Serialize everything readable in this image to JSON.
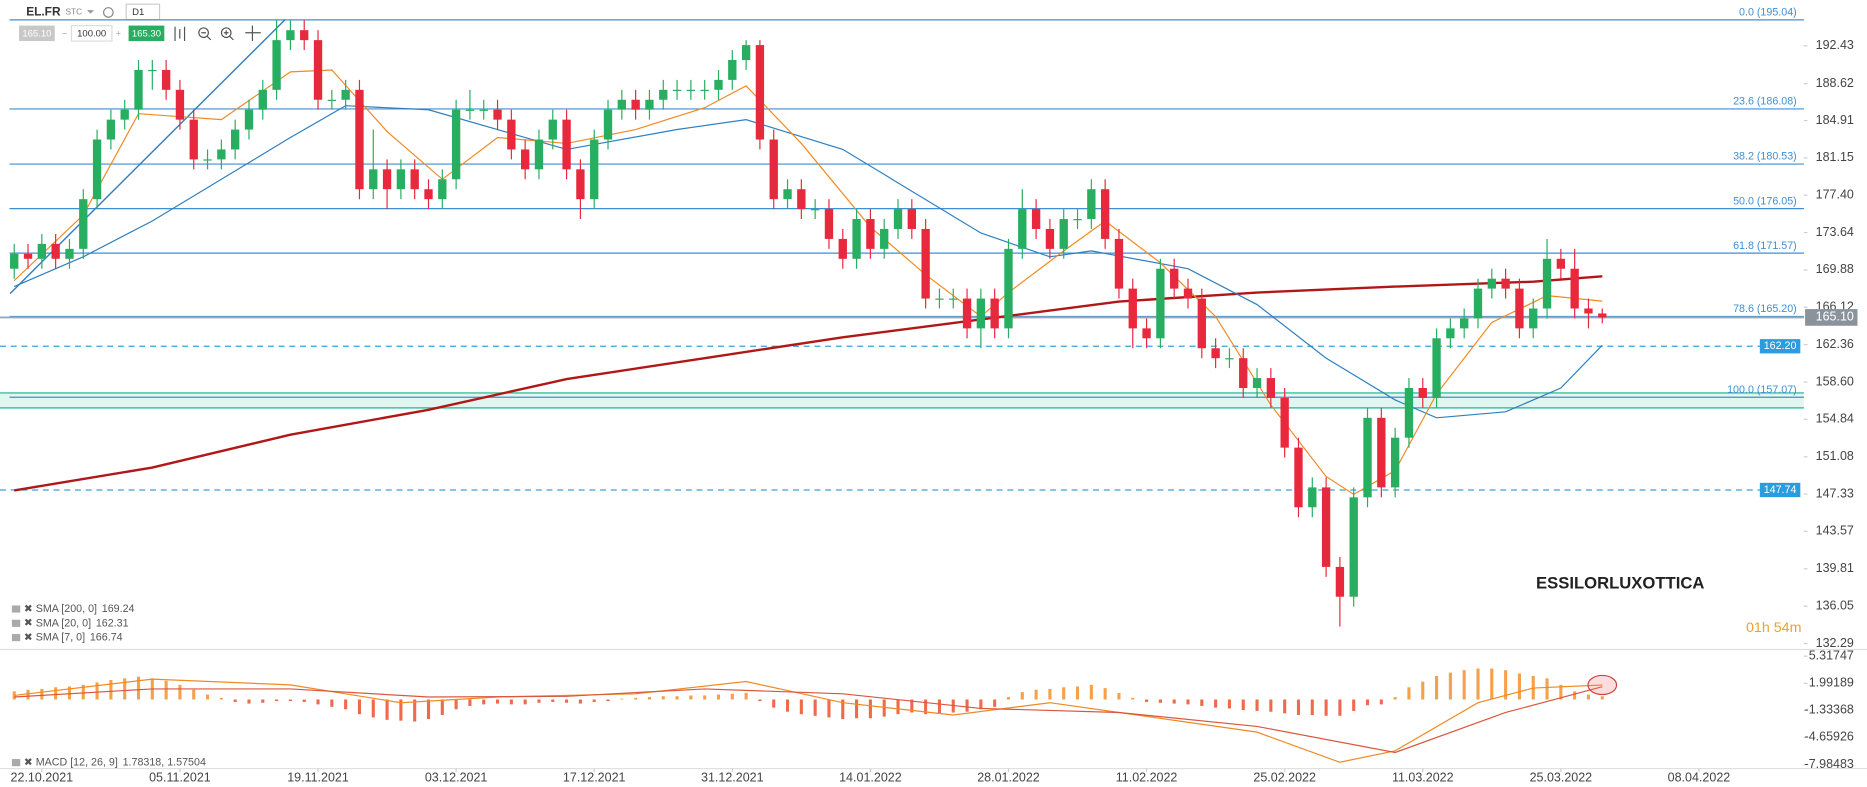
{
  "toolbar": {
    "symbol": "EL.FR",
    "mode": "STC",
    "interval": "D1",
    "bid": "165.10",
    "volume": "100.00",
    "ask": "165.30"
  },
  "chart_data": [
    {
      "type": "candlestick",
      "title": "ESSILORLUXOTTICA",
      "timer": "01h 54m",
      "colors": {
        "up": "#27ae60",
        "down": "#e8283c",
        "fib": "#3d8fd6",
        "zone": "#3fbf9f"
      },
      "xlim": [
        -1.03,
        129.6
      ],
      "ylim": [
        131.69,
        196.98
      ],
      "yticks": [
        192.43,
        188.62,
        184.91,
        181.15,
        {
          "value": 177.4,
          "label": "177.40"
        },
        173.64,
        169.88,
        166.12,
        162.36,
        {
          "value": 158.6,
          "label": "158.60"
        },
        154.84,
        151.08,
        147.33,
        143.57,
        139.81,
        136.05,
        132.29
      ],
      "xticks": [
        {
          "value": 2,
          "label": "22.10.2021"
        },
        {
          "value": 12,
          "label": "05.11.2021"
        },
        {
          "value": 22,
          "label": "19.11.2021"
        },
        {
          "value": 32,
          "label": "03.12.2021"
        },
        {
          "value": 42,
          "label": "17.12.2021"
        },
        {
          "value": 52,
          "label": "31.12.2021"
        },
        {
          "value": 62,
          "label": "14.01.2022"
        },
        {
          "value": 72,
          "label": "28.01.2022"
        },
        {
          "value": 82,
          "label": "11.02.2022"
        },
        {
          "value": 92,
          "label": "25.02.2022"
        },
        {
          "value": 102,
          "label": "11.03.2022"
        },
        {
          "value": 112,
          "label": "25.03.2022"
        },
        {
          "value": 122,
          "label": "08.04.2022"
        }
      ],
      "candles": [
        [
          170,
          172.5,
          169,
          171.5
        ],
        [
          171.5,
          172.5,
          170,
          171
        ],
        [
          171,
          173.5,
          170,
          172.5
        ],
        [
          172.5,
          173.5,
          170,
          171
        ],
        [
          171,
          173,
          170,
          172
        ],
        [
          172,
          178,
          171,
          177
        ],
        [
          177,
          184,
          176,
          183
        ],
        [
          183,
          186,
          182,
          185
        ],
        [
          185,
          187,
          184,
          186
        ],
        [
          186,
          191,
          185,
          190
        ],
        [
          190,
          191,
          188,
          190
        ],
        [
          190,
          191,
          187,
          188
        ],
        [
          188,
          189,
          184,
          185
        ],
        [
          185,
          186,
          180,
          181
        ],
        [
          181,
          182,
          180,
          181
        ],
        [
          181,
          183,
          180,
          182
        ],
        [
          182,
          185,
          181,
          184
        ],
        [
          184,
          187,
          183,
          186
        ],
        [
          186,
          189,
          185,
          188
        ],
        [
          188,
          195,
          187,
          193
        ],
        [
          193,
          195,
          192,
          194
        ],
        [
          194,
          195,
          192,
          193
        ],
        [
          193,
          194,
          186,
          187
        ],
        [
          187,
          188,
          186,
          187
        ],
        [
          187,
          189,
          186,
          188
        ],
        [
          188,
          189,
          177,
          178
        ],
        [
          178,
          184,
          177,
          180
        ],
        [
          180,
          181,
          176,
          178
        ],
        [
          178,
          181,
          177,
          180
        ],
        [
          180,
          181,
          177,
          178
        ],
        [
          178,
          179,
          176,
          177
        ],
        [
          177,
          180,
          176,
          179
        ],
        [
          179,
          187,
          178,
          186
        ],
        [
          186,
          188,
          185,
          186
        ],
        [
          186,
          187,
          185,
          186
        ],
        [
          186,
          187,
          184,
          185
        ],
        [
          185,
          186,
          181,
          182
        ],
        [
          182,
          183,
          179,
          180
        ],
        [
          180,
          184,
          179,
          183
        ],
        [
          183,
          186,
          182,
          185
        ],
        [
          185,
          186,
          179,
          180
        ],
        [
          180,
          181,
          175,
          177
        ],
        [
          177,
          184,
          176,
          183
        ],
        [
          183,
          187,
          182,
          186
        ],
        [
          186,
          188,
          185,
          187
        ],
        [
          187,
          188,
          185,
          186
        ],
        [
          186,
          188,
          185,
          187
        ],
        [
          187,
          189,
          186,
          188
        ],
        [
          188,
          189,
          187,
          188
        ],
        [
          188,
          189,
          187,
          188
        ],
        [
          188,
          189,
          187,
          188
        ],
        [
          188,
          190,
          187,
          189
        ],
        [
          189,
          192,
          188,
          191
        ],
        [
          191,
          193,
          190,
          192.5
        ],
        [
          192.5,
          193,
          182,
          183
        ],
        [
          183,
          184,
          176,
          177
        ],
        [
          177,
          179,
          176,
          178
        ],
        [
          178,
          179,
          175,
          176
        ],
        [
          176,
          177,
          175,
          176
        ],
        [
          176,
          177,
          172,
          173
        ],
        [
          173,
          174,
          170,
          171
        ],
        [
          171,
          176,
          170,
          175
        ],
        [
          175,
          176,
          171,
          172
        ],
        [
          172,
          175,
          171,
          174
        ],
        [
          174,
          177,
          173,
          176
        ],
        [
          176,
          177,
          173,
          174
        ],
        [
          174,
          175,
          166,
          167
        ],
        [
          167,
          168,
          166,
          167
        ],
        [
          167,
          168,
          166,
          167
        ],
        [
          167,
          168,
          163,
          164
        ],
        [
          164,
          168,
          162,
          167
        ],
        [
          167,
          168,
          163,
          164
        ],
        [
          164,
          173,
          163,
          172
        ],
        [
          172,
          178,
          171,
          176
        ],
        [
          176,
          177,
          173,
          174
        ],
        [
          174,
          175,
          171,
          172
        ],
        [
          172,
          176,
          171,
          175
        ],
        [
          175,
          176,
          174,
          175
        ],
        [
          175,
          179,
          174,
          178
        ],
        [
          178,
          179,
          172,
          173
        ],
        [
          173,
          174,
          167,
          168
        ],
        [
          168,
          169,
          162,
          164
        ],
        [
          164,
          165,
          162,
          163
        ],
        [
          163,
          171,
          162,
          170
        ],
        [
          170,
          171,
          167,
          168
        ],
        [
          168,
          169,
          166,
          167
        ],
        [
          167,
          168,
          161,
          162
        ],
        [
          162,
          163,
          160,
          161
        ],
        [
          161,
          162,
          160,
          161
        ],
        [
          161,
          162,
          157,
          158
        ],
        [
          158,
          160,
          157,
          159
        ],
        [
          159,
          160,
          156,
          157
        ],
        [
          157,
          158,
          151,
          152
        ],
        [
          152,
          153,
          145,
          146
        ],
        [
          146,
          149,
          145,
          148
        ],
        [
          148,
          149,
          139,
          140
        ],
        [
          140,
          141,
          134,
          137
        ],
        [
          137,
          148,
          136,
          147
        ],
        [
          147,
          156,
          146,
          155
        ],
        [
          155,
          156,
          147,
          148
        ],
        [
          148,
          154,
          147,
          153
        ],
        [
          153,
          159,
          152,
          158
        ],
        [
          158,
          159,
          156,
          157
        ],
        [
          157,
          164,
          156,
          163
        ],
        [
          163,
          165,
          162,
          164
        ],
        [
          164,
          166,
          163,
          165
        ],
        [
          165,
          169,
          164,
          168
        ],
        [
          168,
          170,
          167,
          169
        ],
        [
          169,
          170,
          167,
          168
        ],
        [
          168,
          169,
          163,
          164
        ],
        [
          164,
          167,
          163,
          166
        ],
        [
          166,
          173,
          165,
          171
        ],
        [
          171,
          172,
          169,
          170
        ],
        [
          170,
          172,
          165,
          166
        ],
        [
          166,
          167,
          164,
          165.5
        ],
        [
          165.5,
          166,
          164.5,
          165.1
        ]
      ],
      "series": [
        {
          "name": "SMA [200, 0]",
          "last": 169.24,
          "color": "#b01818",
          "width": 2,
          "x": [
            0,
            10,
            20,
            30,
            40,
            50,
            60,
            70,
            80,
            90,
            100,
            110,
            115
          ],
          "values": [
            147.7,
            150.0,
            153.3,
            155.8,
            158.9,
            161.0,
            163.1,
            164.9,
            166.7,
            167.6,
            168.2,
            168.7,
            169.24
          ]
        },
        {
          "name": "SMA [20, 0]",
          "last": 162.31,
          "color": "#2f7fc0",
          "width": 1,
          "x": [
            0,
            5,
            10,
            15,
            20,
            24,
            30,
            40,
            48,
            53,
            60,
            65,
            70,
            75,
            78,
            85,
            90,
            95,
            100,
            103,
            108,
            112,
            115
          ],
          "values": [
            168.2,
            171.2,
            174.8,
            179.0,
            183.2,
            186.4,
            186.0,
            182.0,
            184.0,
            185.0,
            182.0,
            177.8,
            173.6,
            171.2,
            171.8,
            170.0,
            166.4,
            161.0,
            156.8,
            155.0,
            155.6,
            158.0,
            162.31
          ]
        },
        {
          "name": "SMA [7, 0]",
          "last": 166.74,
          "color": "#f08a24",
          "width": 1,
          "x": [
            0,
            5,
            9,
            15,
            20,
            23,
            27,
            31,
            35,
            40,
            45,
            50,
            53,
            57,
            62,
            66,
            70,
            72,
            76,
            79,
            83,
            87,
            91,
            95,
            97,
            100,
            103,
            107,
            111,
            115
          ],
          "values": [
            168.8,
            175.4,
            185.6,
            185.0,
            189.8,
            190.0,
            183.8,
            179.0,
            183.2,
            182.6,
            184.0,
            186.2,
            188.4,
            182.6,
            174.2,
            169.4,
            165.2,
            167.6,
            171.8,
            174.8,
            170.6,
            165.2,
            156.3,
            149.1,
            147.3,
            149.7,
            157.4,
            164.6,
            167.3,
            166.74
          ]
        }
      ],
      "trendline": {
        "x": [
          -0.3,
          19.6
        ],
        "values": [
          167.5,
          195.04
        ]
      },
      "fib": [
        {
          "label": "0.0 (195.04)",
          "value": 195.04
        },
        {
          "label": "23.6 (186.08)",
          "value": 186.08
        },
        {
          "label": "38.2 (180.53)",
          "value": 180.53
        },
        {
          "label": "50.0 (176.05)",
          "value": 176.05
        },
        {
          "label": "61.8 (171.57)",
          "value": 171.57
        },
        {
          "label": "78.6 (165.20)",
          "value": 165.2
        },
        {
          "label": "100.0 (157.07)",
          "value": 157.07
        }
      ],
      "zone": [
        156.0,
        157.5
      ],
      "levels": [
        {
          "value": 162.2,
          "label": "162.20"
        },
        {
          "value": 147.74,
          "label": "147.74"
        }
      ],
      "last_price": {
        "value": 165.1,
        "label": "165.10"
      }
    },
    {
      "type": "macd",
      "name": "MACD [12, 26, 9]",
      "last": [
        1.78318,
        1.57504
      ],
      "y2lim": [
        -8.48,
        6.14
      ],
      "y2ticks": [
        5.31747,
        1.99189,
        -1.33368,
        -4.65926,
        -7.98483
      ],
      "colors": {
        "up": "#f5a04a",
        "down": "#ee6a4a"
      },
      "histogram": [
        1.0,
        1.2,
        1.3,
        1.5,
        1.6,
        1.8,
        2.1,
        2.4,
        2.6,
        2.8,
        2.6,
        2.3,
        1.8,
        1.2,
        0.6,
        0.2,
        -0.3,
        -0.5,
        -0.4,
        -0.2,
        -0.2,
        -0.3,
        -0.6,
        -0.9,
        -1.2,
        -1.8,
        -2.2,
        -2.5,
        -2.6,
        -2.7,
        -2.4,
        -1.9,
        -1.2,
        -0.8,
        -0.6,
        -0.5,
        -0.6,
        -0.6,
        -0.4,
        -0.3,
        -0.4,
        -0.5,
        -0.3,
        -0.2,
        0.1,
        0.2,
        0.3,
        0.4,
        0.4,
        0.5,
        0.5,
        0.6,
        0.7,
        0.8,
        -0.2,
        -1.0,
        -1.5,
        -1.8,
        -2.0,
        -2.2,
        -2.4,
        -2.3,
        -2.3,
        -2.1,
        -1.8,
        -1.6,
        -1.8,
        -1.7,
        -1.6,
        -1.5,
        -1.2,
        -0.9,
        0.3,
        0.9,
        1.2,
        1.3,
        1.5,
        1.6,
        1.8,
        1.4,
        0.8,
        0.2,
        -0.3,
        -0.4,
        -0.5,
        -0.6,
        -0.8,
        -1.0,
        -1.1,
        -1.3,
        -1.4,
        -1.5,
        -1.7,
        -1.9,
        -1.9,
        -2.0,
        -2.0,
        -1.4,
        -0.7,
        -0.6,
        0.3,
        1.5,
        2.2,
        2.9,
        3.3,
        3.6,
        3.8,
        3.8,
        3.6,
        3.2,
        2.9,
        2.6,
        1.8,
        1.0,
        0.6,
        0.4
      ],
      "series": [
        {
          "color": "#f08a24",
          "x": [
            0,
            10,
            20,
            28,
            35,
            45,
            53,
            60,
            68,
            75,
            80,
            90,
            96,
            100,
            106,
            110,
            115
          ],
          "values": [
            0.5,
            2.5,
            1.8,
            -0.4,
            0.3,
            0.7,
            2.2,
            -0.4,
            -1.9,
            -0.4,
            -1.6,
            -4.0,
            -7.7,
            -6.3,
            -0.4,
            1.4,
            1.78318
          ]
        },
        {
          "color": "#d9573e",
          "x": [
            0,
            10,
            20,
            30,
            40,
            50,
            60,
            70,
            80,
            90,
            100,
            108,
            115
          ],
          "values": [
            0.3,
            1.3,
            1.3,
            0.3,
            0.4,
            1.3,
            0.7,
            -1.1,
            -1.6,
            -3.3,
            -6.5,
            -1.6,
            1.57504
          ]
        }
      ]
    }
  ]
}
